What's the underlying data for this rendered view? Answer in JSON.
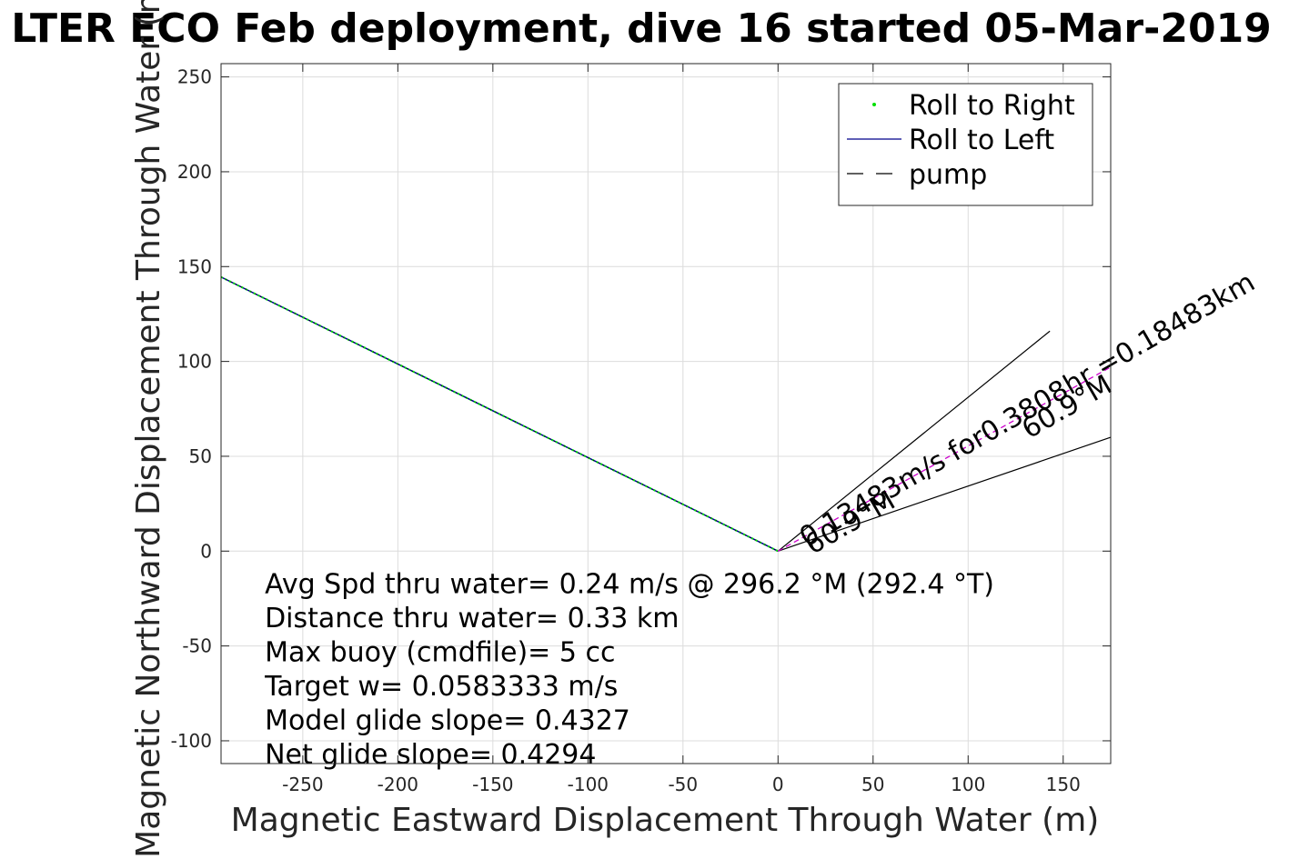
{
  "chart_data": {
    "type": "line",
    "title": "LTER ECO Feb deployment, dive 16 started 05-Mar-2019",
    "xlabel": "Magnetic Eastward Displacement Through Water (m)",
    "ylabel": "Magnetic Northward Displacement Through Water (m)",
    "xlim": [
      -293,
      175
    ],
    "ylim": [
      -112,
      257
    ],
    "xticks": [
      -250,
      -200,
      -150,
      -100,
      -50,
      0,
      50,
      100,
      150
    ],
    "yticks": [
      -100,
      -50,
      0,
      50,
      100,
      150,
      200,
      250
    ],
    "grid": true,
    "legend_position": "top-right",
    "legend": [
      {
        "name": "Roll to Right",
        "style": "dot",
        "color": "#00e000"
      },
      {
        "name": "Roll to Left",
        "style": "solid",
        "color": "#00008b"
      },
      {
        "name": "pump",
        "style": "dashed",
        "color": "#000000"
      }
    ],
    "series": [
      {
        "name": "Roll to Right",
        "color": "#00e000",
        "x": [
          -293,
          0
        ],
        "y": [
          144.5,
          0
        ]
      },
      {
        "name": "Roll to Left",
        "color": "#00008b",
        "x": [
          -293,
          0
        ],
        "y": [
          144.5,
          0
        ]
      },
      {
        "color": "#cc00cc",
        "x": [
          0,
          175
        ],
        "y": [
          0,
          97
        ]
      }
    ],
    "reference_lines": [
      {
        "x": [
          0,
          143
        ],
        "y": [
          0,
          116
        ]
      },
      {
        "x": [
          0,
          175
        ],
        "y": [
          0,
          60
        ]
      }
    ],
    "annotations": [
      {
        "text": "0.13483m/s for0.3808hr =0.18483km",
        "anchor_data": [
          15,
          2
        ],
        "angle_deg": -30
      },
      {
        "text": "60.9°M",
        "anchor_data": [
          18,
          -2
        ],
        "angle_deg": -30
      },
      {
        "text": "60.9°M",
        "anchor_data": [
          132,
          59
        ],
        "angle_deg": -30
      }
    ],
    "stats_text": [
      "Avg Spd thru water=  0.24 m/s @ 296.2 °M (292.4 °T)",
      "Distance thru water=  0.33 km",
      "Max buoy (cmdfile)= 5 cc",
      "Target w= 0.0583333 m/s",
      "Model glide slope= 0.4327",
      "Net glide slope= 0.4294"
    ]
  }
}
